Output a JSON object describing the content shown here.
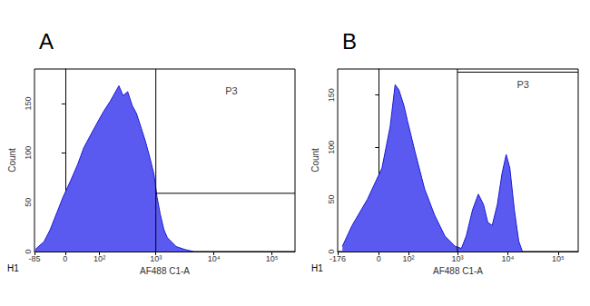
{
  "chart_data": [
    {
      "type": "area",
      "title": "A",
      "corner_label": "H1",
      "x_label": "AF488 C1-A",
      "y_label": "Count",
      "x": [
        -82,
        -70,
        -52,
        -35,
        -18,
        -5,
        12,
        28,
        44,
        65,
        89,
        120,
        158,
        190,
        228,
        270,
        325,
        390,
        462,
        560,
        659,
        790,
        930,
        1050,
        1190,
        1380,
        1580,
        2240,
        3180,
        4460
      ],
      "values": [
        2,
        5,
        10,
        22,
        40,
        55,
        72,
        88,
        105,
        118,
        130,
        142,
        152,
        160,
        168,
        158,
        162,
        148,
        140,
        125,
        112,
        95,
        78,
        55,
        38,
        22,
        14,
        5,
        2,
        0
      ],
      "color": "#5a5af0",
      "xlim": [
        -85,
        250000
      ],
      "xticks": [
        -85,
        0,
        {
          "value": 100,
          "label": "10²"
        },
        {
          "value": 1000,
          "label": "10³"
        },
        {
          "value": 10000,
          "label": "10⁴"
        },
        {
          "value": 100000,
          "label": "10⁵"
        }
      ],
      "ylim": [
        0,
        185
      ],
      "yticks": [
        0,
        50,
        100,
        150
      ],
      "grid": false,
      "gate": {
        "label": "P3",
        "x_start": 1000,
        "level": 59,
        "label_x": 20000,
        "label_y": 163
      }
    },
    {
      "type": "area",
      "title": "B",
      "corner_label": "H1",
      "x_label": "AF488 C1-A",
      "y_label": "Count",
      "x": [
        -140,
        -85,
        -30,
        8,
        30,
        45,
        58,
        78,
        95,
        140,
        220,
        350,
        560,
        900,
        1200,
        1500,
        2000,
        2600,
        3300,
        4000,
        4900,
        6200,
        7700,
        9300,
        11000,
        13500,
        16500,
        19500
      ],
      "values": [
        5,
        25,
        50,
        80,
        120,
        160,
        155,
        140,
        125,
        95,
        60,
        35,
        15,
        5,
        3,
        15,
        40,
        55,
        45,
        28,
        25,
        45,
        75,
        93,
        80,
        40,
        10,
        0
      ],
      "color": "#5a5af0",
      "xlim": [
        -176,
        250000
      ],
      "xticks": [
        -176,
        0,
        {
          "value": 100,
          "label": "10²"
        },
        {
          "value": 1000,
          "label": "10³"
        },
        {
          "value": 10000,
          "label": "10⁴"
        },
        {
          "value": 100000,
          "label": "10⁵"
        }
      ],
      "ylim": [
        0,
        175
      ],
      "yticks": [
        0,
        50,
        100,
        150
      ],
      "grid": false,
      "gate": {
        "label": "P3",
        "x_start": 1000,
        "level": 172,
        "label_x": 20000,
        "label_y": 160
      }
    }
  ]
}
